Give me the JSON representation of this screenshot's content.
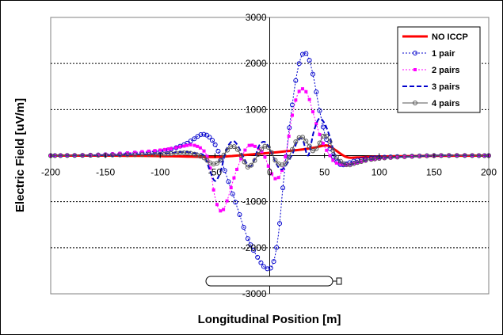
{
  "chart_data": {
    "type": "line",
    "xlabel": "Longitudinal Position [m]",
    "ylabel": "Electric Field [uV/m]",
    "xlim": [
      -200,
      200
    ],
    "ylim": [
      -3000,
      3000
    ],
    "x_ticks": [
      -200,
      -150,
      -100,
      -50,
      0,
      50,
      100,
      150,
      200
    ],
    "y_ticks": [
      -3000,
      -2000,
      -1000,
      1000,
      2000,
      3000
    ],
    "grid": "horizontal dotted",
    "legend_position": "top-right",
    "series": [
      {
        "name": "NO ICCP",
        "color": "#ff0000",
        "style": "solid-thick",
        "x": [
          -200,
          -150,
          -100,
          -75,
          -50,
          -25,
          0,
          25,
          40,
          50,
          55,
          60,
          70,
          80,
          100,
          150,
          200
        ],
        "y": [
          0,
          0,
          -10,
          -20,
          -30,
          10,
          60,
          120,
          170,
          220,
          200,
          120,
          -30,
          -40,
          -20,
          -5,
          0
        ]
      },
      {
        "name": "1 pair",
        "color": "#0000cc",
        "style": "thin-dotted-circle",
        "x": [
          -200,
          -150,
          -100,
          -80,
          -70,
          -62,
          -55,
          -48,
          -40,
          -30,
          -20,
          -10,
          -3,
          3,
          8,
          12,
          16,
          20,
          25,
          30,
          35,
          40,
          45,
          50,
          55,
          60,
          65,
          70,
          80,
          100,
          150,
          200
        ],
        "y": [
          0,
          20,
          100,
          220,
          350,
          460,
          400,
          150,
          -400,
          -1100,
          -1800,
          -2250,
          -2450,
          -2350,
          -1700,
          -700,
          200,
          1000,
          1800,
          2200,
          2150,
          1700,
          1050,
          500,
          150,
          -100,
          -200,
          -180,
          -100,
          -40,
          0,
          0
        ]
      },
      {
        "name": "2 pairs",
        "color": "#ff00ff",
        "style": "thin-dotted-square",
        "x": [
          -200,
          -150,
          -100,
          -80,
          -70,
          -60,
          -55,
          -50,
          -45,
          -40,
          -30,
          -20,
          -10,
          -5,
          0,
          5,
          10,
          15,
          20,
          25,
          30,
          35,
          40,
          45,
          50,
          55,
          60,
          70,
          80,
          100,
          150,
          200
        ],
        "y": [
          0,
          30,
          120,
          200,
          230,
          100,
          -200,
          -900,
          -1200,
          -1050,
          -300,
          200,
          150,
          0,
          -300,
          -500,
          -400,
          50,
          800,
          1300,
          1450,
          1300,
          900,
          500,
          200,
          0,
          -150,
          -200,
          -150,
          -70,
          0,
          0
        ]
      },
      {
        "name": "3 pairs",
        "color": "#0000cc",
        "style": "dashed-thick",
        "x": [
          -200,
          -150,
          -100,
          -80,
          -70,
          -60,
          -55,
          -50,
          -45,
          -40,
          -35,
          -30,
          -20,
          -15,
          -10,
          -5,
          0,
          10,
          20,
          25,
          30,
          35,
          40,
          45,
          50,
          55,
          60,
          70,
          80,
          100,
          150,
          200
        ],
        "y": [
          0,
          10,
          40,
          80,
          60,
          0,
          -300,
          -550,
          -350,
          100,
          300,
          250,
          -200,
          -150,
          200,
          300,
          150,
          -300,
          0,
          300,
          350,
          0,
          500,
          800,
          700,
          400,
          0,
          -200,
          -150,
          -60,
          0,
          0
        ]
      },
      {
        "name": "4 pairs",
        "color": "#555555",
        "style": "thin-circle",
        "x": [
          -200,
          -150,
          -100,
          -80,
          -70,
          -60,
          -55,
          -50,
          -45,
          -40,
          -35,
          -30,
          -25,
          -20,
          -15,
          -10,
          -5,
          0,
          5,
          10,
          15,
          20,
          25,
          30,
          35,
          40,
          45,
          50,
          55,
          60,
          70,
          80,
          100,
          150,
          200
        ],
        "y": [
          0,
          10,
          30,
          60,
          40,
          -50,
          -150,
          -180,
          -100,
          80,
          200,
          150,
          -50,
          -250,
          -150,
          50,
          200,
          150,
          -100,
          -200,
          -150,
          100,
          350,
          400,
          250,
          100,
          250,
          450,
          300,
          0,
          -200,
          -150,
          -60,
          0,
          0
        ]
      }
    ]
  }
}
